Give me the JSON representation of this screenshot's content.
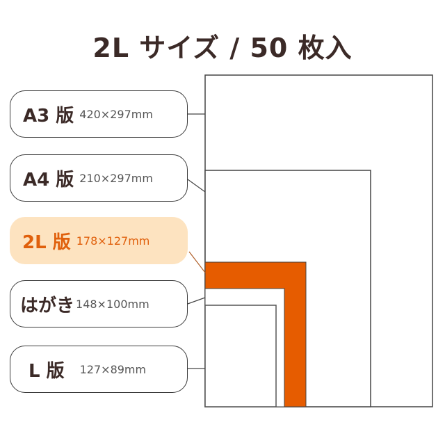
{
  "title": "2L サイズ / 50 枚入",
  "sizes": [
    {
      "name": "A3 版",
      "dims": "420×297mm"
    },
    {
      "name": "A4 版",
      "dims": "210×297mm"
    },
    {
      "name": "2L 版",
      "dims": "178×127mm"
    },
    {
      "name": "はがき",
      "dims": "148×100mm"
    },
    {
      "name": "L 版",
      "dims": "127×89mm"
    }
  ],
  "colors": {
    "highlight": "#e65c00",
    "highlight_bg": "#fde3c0",
    "text": "#3b2a27"
  }
}
